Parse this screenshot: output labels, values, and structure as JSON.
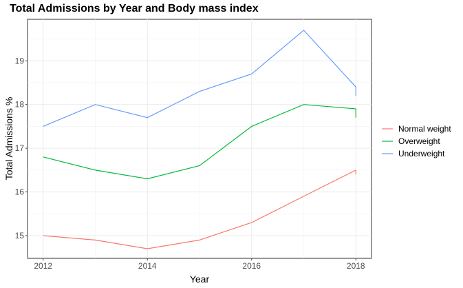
{
  "chart_data": {
    "type": "line",
    "title": "Total Admissions by Year and Body mass index",
    "xlabel": "Year",
    "ylabel": "Total Admissions %",
    "x": [
      2012,
      2013,
      2014,
      2015,
      2016,
      2017,
      2018
    ],
    "x_ticks": [
      "2012",
      "2014",
      "2016",
      "2018"
    ],
    "y_ticks": [
      "15",
      "16",
      "17",
      "18",
      "19"
    ],
    "xlim": [
      2011.7,
      2018.3
    ],
    "ylim": [
      14.48,
      19.95
    ],
    "grid": true,
    "legend_position": "right",
    "series": [
      {
        "name": "Normal weight",
        "color": "#F8766D",
        "values": [
          15.0,
          14.9,
          14.7,
          14.9,
          15.3,
          15.9,
          16.5
        ],
        "end_drop": 16.4
      },
      {
        "name": "Overweight",
        "color": "#00BA38",
        "values": [
          16.8,
          16.5,
          16.3,
          16.6,
          17.5,
          18.0,
          17.9
        ],
        "end_drop": 17.7
      },
      {
        "name": "Underweight",
        "color": "#619CFF",
        "values": [
          17.5,
          18.0,
          17.7,
          18.3,
          18.7,
          19.7,
          18.4
        ],
        "end_drop": 18.2
      }
    ]
  }
}
